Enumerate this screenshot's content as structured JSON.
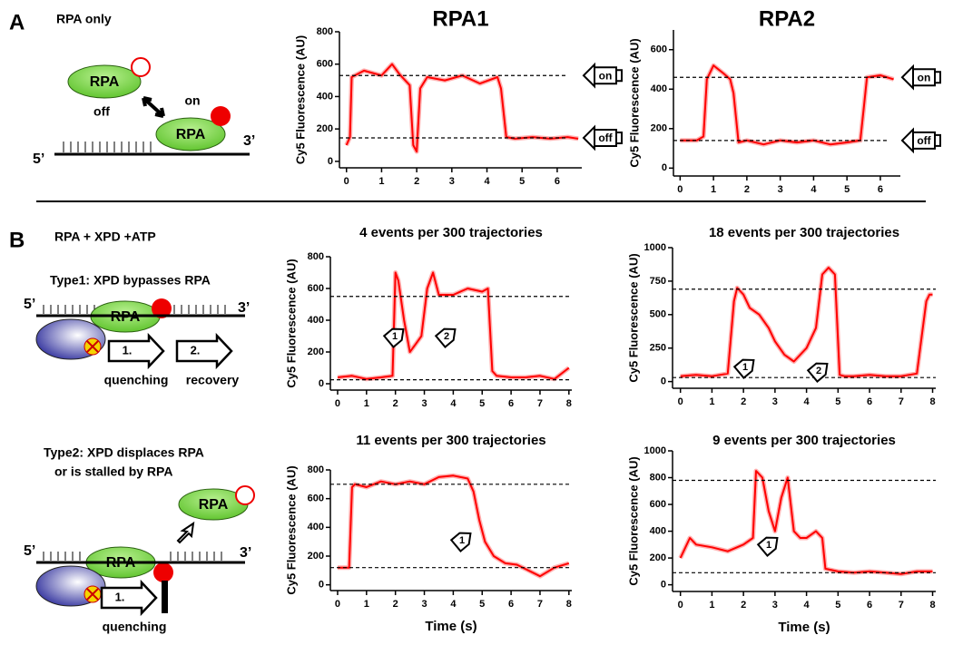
{
  "labels": {
    "panel_a": "A",
    "panel_a_title": "RPA only",
    "rpa": "RPA",
    "off": "off",
    "on": "on",
    "five": "5’",
    "three": "3’",
    "panel_b": "B",
    "panel_b_title": "RPA + XPD +ATP",
    "type1": "Type1:  XPD bypasses RPA",
    "step1": "1.",
    "step2": "2.",
    "quenching": "quenching",
    "recovery": "recovery",
    "type2_line1": "Type2:  XPD displaces RPA",
    "type2_line2": "or is stalled by RPA"
  },
  "chart_data": [
    {
      "type": "line",
      "title": "RPA1",
      "y_label": "Cy5 Fluorescence (AU)",
      "color": "#ff0000",
      "x": [
        0,
        0.1,
        0.15,
        0.5,
        1,
        1.3,
        1.5,
        1.8,
        1.9,
        2.0,
        2.1,
        2.3,
        2.8,
        3.3,
        3.8,
        4.3,
        4.4,
        4.55,
        4.8,
        5.3,
        5.8,
        6.3,
        6.6
      ],
      "values": [
        100,
        150,
        520,
        560,
        530,
        600,
        540,
        470,
        100,
        60,
        450,
        520,
        500,
        530,
        480,
        520,
        450,
        150,
        140,
        150,
        140,
        150,
        140
      ],
      "xlim": [
        -0.2,
        6.7
      ],
      "xticks": [
        0,
        1,
        2,
        3,
        4,
        5,
        6
      ],
      "ylim": [
        -40,
        800
      ],
      "yticks": [
        0,
        200,
        400,
        600,
        800
      ],
      "ref_lines": [
        530,
        145
      ],
      "annotations": [
        "on",
        "off"
      ]
    },
    {
      "type": "line",
      "title": "RPA2",
      "y_label": "Cy5 Fluorescence (AU)",
      "color": "#ff0000",
      "x": [
        0,
        0.5,
        0.7,
        0.8,
        1.0,
        1.3,
        1.5,
        1.6,
        1.75,
        2,
        2.5,
        3,
        3.5,
        4,
        4.5,
        5,
        5.4,
        5.5,
        5.6,
        6,
        6.4
      ],
      "values": [
        140,
        140,
        160,
        450,
        520,
        480,
        450,
        380,
        130,
        140,
        120,
        140,
        130,
        140,
        120,
        130,
        140,
        300,
        460,
        470,
        450
      ],
      "xlim": [
        -0.2,
        6.6
      ],
      "xticks": [
        0,
        1,
        2,
        3,
        4,
        5,
        6
      ],
      "ylim": [
        -40,
        700
      ],
      "yticks": [
        0,
        200,
        400,
        600
      ],
      "ref_lines": [
        460,
        140
      ],
      "annotations": [
        "on",
        "off"
      ]
    },
    {
      "type": "line",
      "title": "4 events per 300 trajectories",
      "y_label": "Cy5 Fluorescence (AU)",
      "color": "#ff0000",
      "x": [
        0,
        0.5,
        1,
        1.5,
        1.9,
        2.0,
        2.1,
        2.3,
        2.5,
        2.7,
        2.9,
        3.1,
        3.3,
        3.5,
        4,
        4.5,
        5,
        5.2,
        5.35,
        5.5,
        6,
        6.5,
        7,
        7.5,
        8
      ],
      "values": [
        40,
        50,
        30,
        40,
        50,
        700,
        650,
        400,
        200,
        250,
        300,
        600,
        700,
        560,
        560,
        600,
        580,
        600,
        80,
        50,
        40,
        40,
        50,
        30,
        100
      ],
      "xlim": [
        -0.25,
        8.1
      ],
      "xticks": [
        0,
        1,
        2,
        3,
        4,
        5,
        6,
        7,
        8
      ],
      "ylim": [
        -40,
        800
      ],
      "yticks": [
        0,
        200,
        400,
        600,
        800
      ],
      "ref_lines": [
        550,
        25
      ],
      "annotations": [
        "1",
        "2"
      ]
    },
    {
      "type": "line",
      "title": "18 events per 300 trajectories",
      "y_label": "Cy5 Fluorescence (AU)",
      "color": "#ff0000",
      "x": [
        0,
        0.5,
        1,
        1.5,
        1.7,
        1.8,
        2,
        2.2,
        2.5,
        2.8,
        3,
        3.3,
        3.6,
        4,
        4.3,
        4.5,
        4.7,
        4.9,
        5.05,
        5.2,
        5.5,
        6,
        6.5,
        7,
        7.5,
        7.8,
        7.9,
        8
      ],
      "values": [
        40,
        50,
        40,
        60,
        600,
        700,
        650,
        550,
        500,
        400,
        300,
        200,
        150,
        250,
        400,
        800,
        850,
        800,
        50,
        40,
        40,
        50,
        40,
        40,
        60,
        600,
        650,
        650
      ],
      "xlim": [
        -0.25,
        8.1
      ],
      "xticks": [
        0,
        1,
        2,
        3,
        4,
        5,
        6,
        7,
        8
      ],
      "ylim": [
        -50,
        1000
      ],
      "yticks": [
        0,
        250,
        500,
        750,
        1000
      ],
      "ref_lines": [
        690,
        30
      ],
      "annotations": [
        "1",
        "2"
      ]
    },
    {
      "type": "line",
      "title": "11 events per 300 trajectories",
      "y_label": "Cy5 Fluorescence (AU)",
      "x_label": "Time (s)",
      "color": "#ff0000",
      "x": [
        0,
        0.4,
        0.5,
        0.6,
        1,
        1.5,
        2,
        2.5,
        3,
        3.5,
        4,
        4.5,
        4.7,
        4.9,
        5.1,
        5.4,
        5.8,
        6.2,
        6.6,
        7,
        7.5,
        8
      ],
      "values": [
        120,
        120,
        680,
        700,
        680,
        720,
        700,
        720,
        700,
        750,
        760,
        740,
        650,
        450,
        300,
        200,
        150,
        140,
        100,
        60,
        120,
        150
      ],
      "xlim": [
        -0.25,
        8.1
      ],
      "xticks": [
        0,
        1,
        2,
        3,
        4,
        5,
        6,
        7,
        8
      ],
      "ylim": [
        -40,
        800
      ],
      "yticks": [
        0,
        200,
        400,
        600,
        800
      ],
      "ref_lines": [
        700,
        120
      ],
      "annotations": [
        "1"
      ]
    },
    {
      "type": "line",
      "title": "9 events per 300 trajectories",
      "y_label": "Cy5 Fluorescence (AU)",
      "x_label": "Time (s)",
      "color": "#ff0000",
      "x": [
        0,
        0.3,
        0.5,
        1,
        1.5,
        2,
        2.3,
        2.4,
        2.6,
        2.8,
        3,
        3.2,
        3.4,
        3.6,
        3.8,
        4,
        4.3,
        4.5,
        4.6,
        5,
        5.5,
        6,
        6.5,
        7,
        7.5,
        8
      ],
      "values": [
        200,
        350,
        300,
        280,
        250,
        300,
        350,
        850,
        800,
        550,
        400,
        650,
        800,
        400,
        350,
        350,
        400,
        350,
        120,
        100,
        90,
        100,
        90,
        80,
        100,
        100
      ],
      "xlim": [
        -0.25,
        8.1
      ],
      "xticks": [
        0,
        1,
        2,
        3,
        4,
        5,
        6,
        7,
        8
      ],
      "ylim": [
        -50,
        1000
      ],
      "yticks": [
        0,
        200,
        400,
        600,
        800,
        1000
      ],
      "ref_lines": [
        780,
        90
      ],
      "annotations": [
        "1"
      ]
    }
  ]
}
